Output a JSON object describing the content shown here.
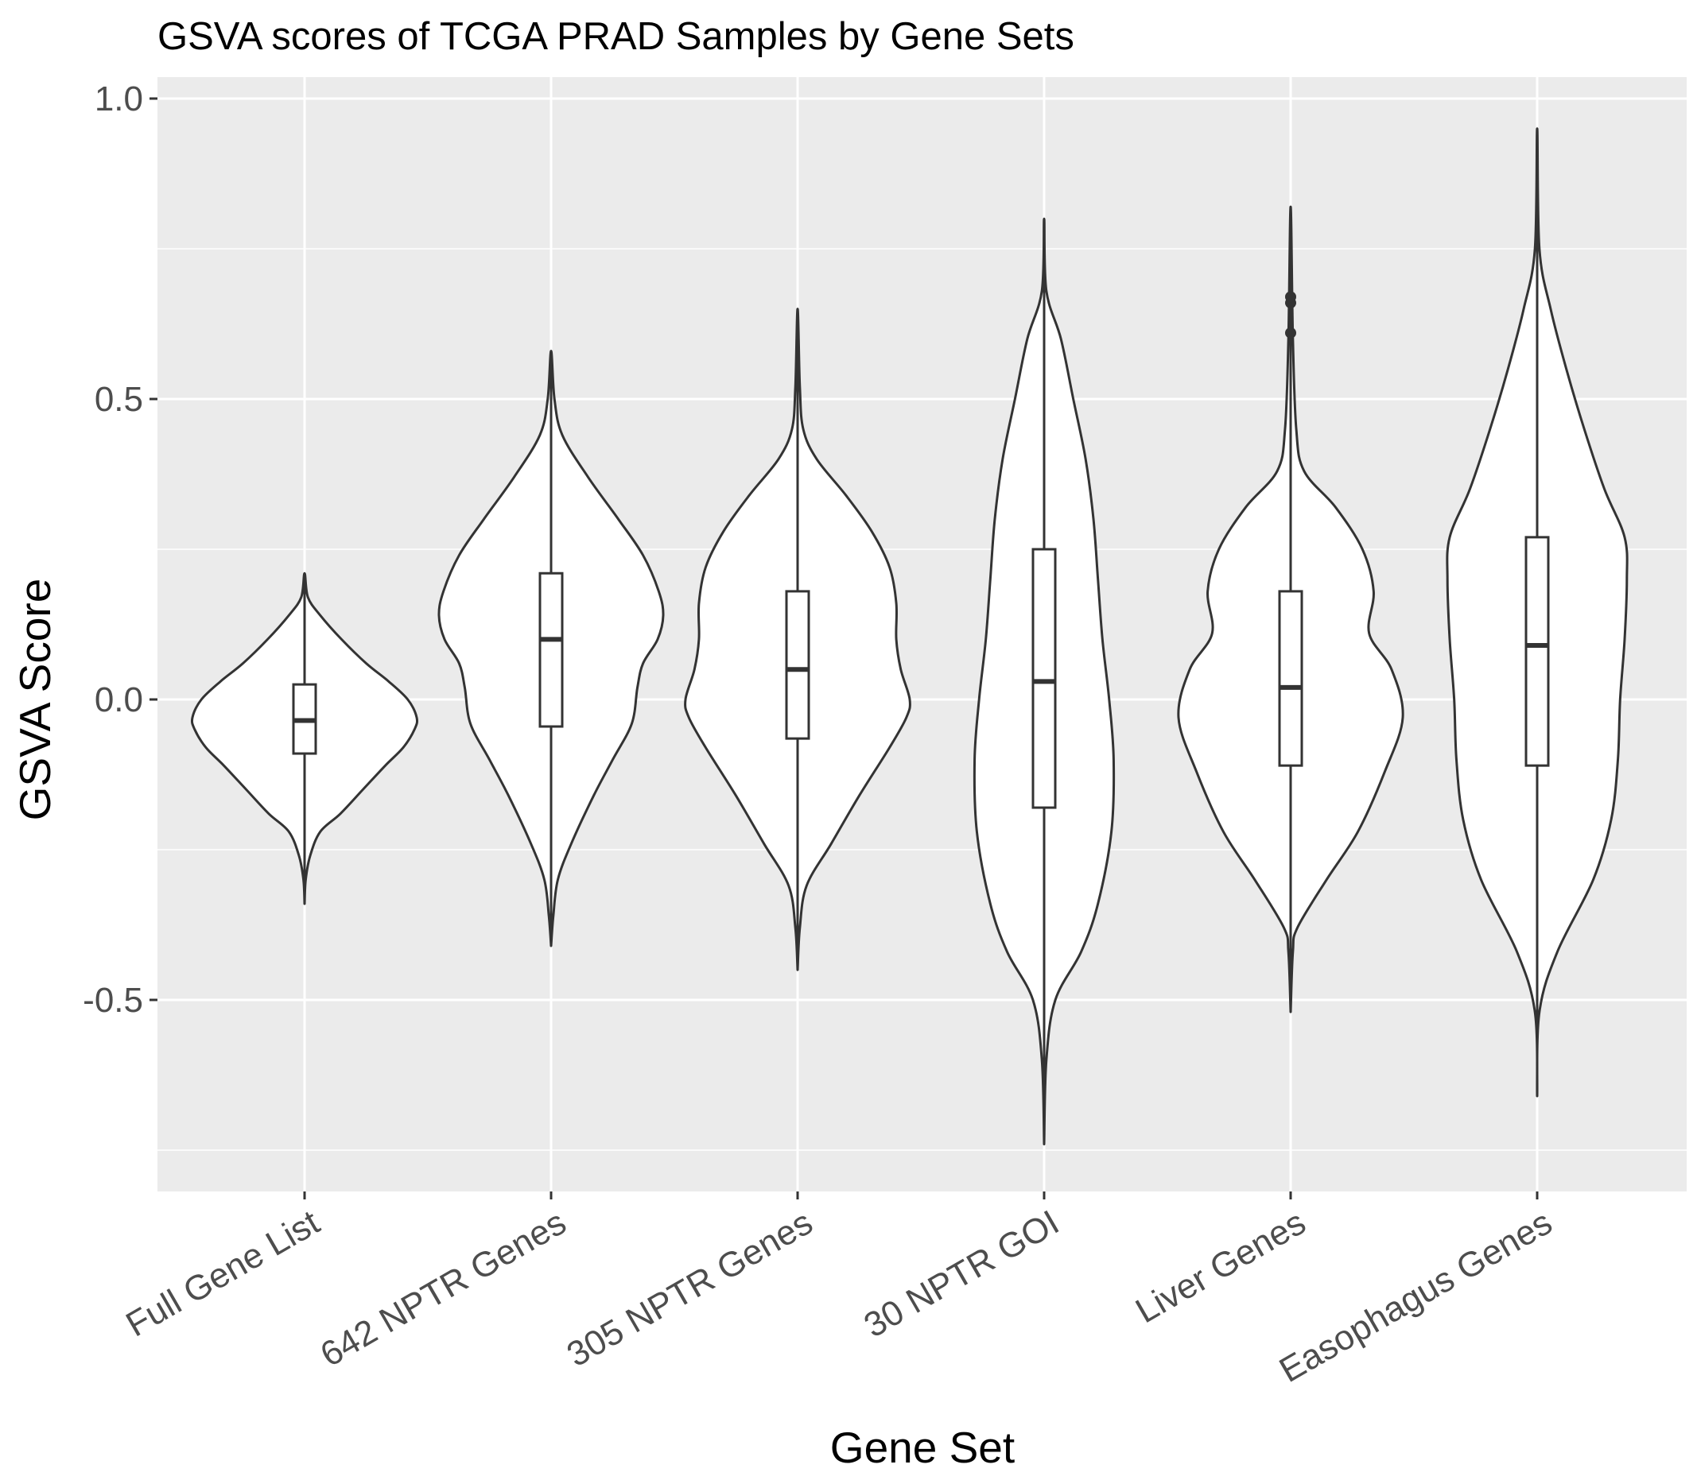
{
  "chart_data": {
    "type": "violin",
    "title": "GSVA scores of TCGA PRAD Samples by Gene Sets",
    "xlabel": "Gene Set",
    "ylabel": "GSVA Score",
    "ylim": [
      -0.82,
      1.04
    ],
    "yticks": [
      -0.5,
      0.0,
      0.5,
      1.0
    ],
    "ytick_labels": [
      "-0.5",
      "0.0",
      "0.5",
      "1.0"
    ],
    "categories": [
      "Full Gene List",
      "642 NPTR Genes",
      "305 NPTR Genes",
      "30 NPTR GOI",
      "Liver Genes",
      "Easophagus Genes"
    ],
    "grid": true,
    "legend": "none",
    "colors": {
      "panel": "#ebebeb",
      "grid": "#ffffff",
      "outline": "#333333",
      "fill": "#ffffff",
      "tick_text": "#4d4d4d"
    },
    "boxes": [
      {
        "category": "Full Gene List",
        "min": -0.34,
        "q1": -0.09,
        "median": -0.035,
        "q3": 0.025,
        "max": 0.21,
        "outliers": []
      },
      {
        "category": "642 NPTR Genes",
        "min": -0.41,
        "q1": -0.045,
        "median": 0.1,
        "q3": 0.21,
        "max": 0.58,
        "outliers": []
      },
      {
        "category": "305 NPTR Genes",
        "min": -0.45,
        "q1": -0.065,
        "median": 0.05,
        "q3": 0.18,
        "max": 0.65,
        "outliers": []
      },
      {
        "category": "30 NPTR GOI",
        "min": -0.74,
        "q1": -0.18,
        "median": 0.03,
        "q3": 0.25,
        "max": 0.8,
        "outliers": []
      },
      {
        "category": "Liver Genes",
        "min": -0.52,
        "q1": -0.11,
        "median": 0.02,
        "q3": 0.18,
        "max": 0.82,
        "outliers": [
          0.61,
          0.66,
          0.67
        ]
      },
      {
        "category": "Easophagus Genes",
        "min": -0.66,
        "q1": -0.11,
        "median": 0.09,
        "q3": 0.27,
        "max": 0.95,
        "outliers": []
      }
    ],
    "violins": [
      {
        "category": "Full Gene List",
        "profile": [
          [
            -0.34,
            0
          ],
          [
            -0.3,
            0.01
          ],
          [
            -0.26,
            0.05
          ],
          [
            -0.22,
            0.14
          ],
          [
            -0.19,
            0.32
          ],
          [
            -0.15,
            0.52
          ],
          [
            -0.11,
            0.72
          ],
          [
            -0.08,
            0.88
          ],
          [
            -0.05,
            0.98
          ],
          [
            -0.03,
            1.0
          ],
          [
            0.0,
            0.92
          ],
          [
            0.03,
            0.75
          ],
          [
            0.06,
            0.55
          ],
          [
            0.1,
            0.33
          ],
          [
            0.14,
            0.14
          ],
          [
            0.17,
            0.03
          ],
          [
            0.21,
            0
          ]
        ]
      },
      {
        "category": "642 NPTR Genes",
        "profile": [
          [
            -0.41,
            0
          ],
          [
            -0.36,
            0.02
          ],
          [
            -0.3,
            0.06
          ],
          [
            -0.24,
            0.18
          ],
          [
            -0.16,
            0.38
          ],
          [
            -0.1,
            0.55
          ],
          [
            -0.04,
            0.72
          ],
          [
            0.02,
            0.77
          ],
          [
            0.06,
            0.82
          ],
          [
            0.1,
            0.95
          ],
          [
            0.14,
            1.0
          ],
          [
            0.18,
            0.96
          ],
          [
            0.24,
            0.82
          ],
          [
            0.3,
            0.6
          ],
          [
            0.37,
            0.33
          ],
          [
            0.44,
            0.1
          ],
          [
            0.5,
            0.03
          ],
          [
            0.58,
            0
          ]
        ]
      },
      {
        "category": "305 NPTR Genes",
        "profile": [
          [
            -0.45,
            0
          ],
          [
            -0.38,
            0.02
          ],
          [
            -0.31,
            0.08
          ],
          [
            -0.24,
            0.3
          ],
          [
            -0.16,
            0.55
          ],
          [
            -0.08,
            0.82
          ],
          [
            -0.03,
            0.97
          ],
          [
            0.0,
            1.0
          ],
          [
            0.05,
            0.92
          ],
          [
            0.1,
            0.88
          ],
          [
            0.16,
            0.88
          ],
          [
            0.22,
            0.82
          ],
          [
            0.28,
            0.66
          ],
          [
            0.34,
            0.43
          ],
          [
            0.4,
            0.17
          ],
          [
            0.45,
            0.05
          ],
          [
            0.52,
            0.02
          ],
          [
            0.65,
            0
          ]
        ]
      },
      {
        "category": "30 NPTR GOI",
        "profile": [
          [
            -0.74,
            0
          ],
          [
            -0.6,
            0.02
          ],
          [
            -0.5,
            0.1
          ],
          [
            -0.42,
            0.33
          ],
          [
            -0.34,
            0.48
          ],
          [
            -0.22,
            0.6
          ],
          [
            -0.1,
            0.62
          ],
          [
            0.0,
            0.58
          ],
          [
            0.1,
            0.52
          ],
          [
            0.2,
            0.48
          ],
          [
            0.3,
            0.44
          ],
          [
            0.4,
            0.37
          ],
          [
            0.5,
            0.26
          ],
          [
            0.6,
            0.15
          ],
          [
            0.68,
            0.02
          ],
          [
            0.8,
            0
          ]
        ]
      },
      {
        "category": "Liver Genes",
        "profile": [
          [
            -0.52,
            0
          ],
          [
            -0.42,
            0.02
          ],
          [
            -0.38,
            0.06
          ],
          [
            -0.3,
            0.32
          ],
          [
            -0.22,
            0.6
          ],
          [
            -0.12,
            0.84
          ],
          [
            -0.03,
            1.0
          ],
          [
            0.05,
            0.9
          ],
          [
            0.11,
            0.7
          ],
          [
            0.18,
            0.74
          ],
          [
            0.25,
            0.64
          ],
          [
            0.32,
            0.4
          ],
          [
            0.38,
            0.12
          ],
          [
            0.45,
            0.05
          ],
          [
            0.6,
            0.02
          ],
          [
            0.82,
            0
          ]
        ]
      },
      {
        "category": "Easophagus Genes",
        "profile": [
          [
            -0.66,
            0
          ],
          [
            -0.52,
            0.02
          ],
          [
            -0.42,
            0.18
          ],
          [
            -0.3,
            0.5
          ],
          [
            -0.2,
            0.66
          ],
          [
            -0.1,
            0.72
          ],
          [
            0.0,
            0.74
          ],
          [
            0.1,
            0.78
          ],
          [
            0.2,
            0.8
          ],
          [
            0.27,
            0.78
          ],
          [
            0.35,
            0.6
          ],
          [
            0.45,
            0.42
          ],
          [
            0.55,
            0.26
          ],
          [
            0.65,
            0.12
          ],
          [
            0.75,
            0.02
          ],
          [
            0.95,
            0
          ]
        ]
      }
    ]
  }
}
